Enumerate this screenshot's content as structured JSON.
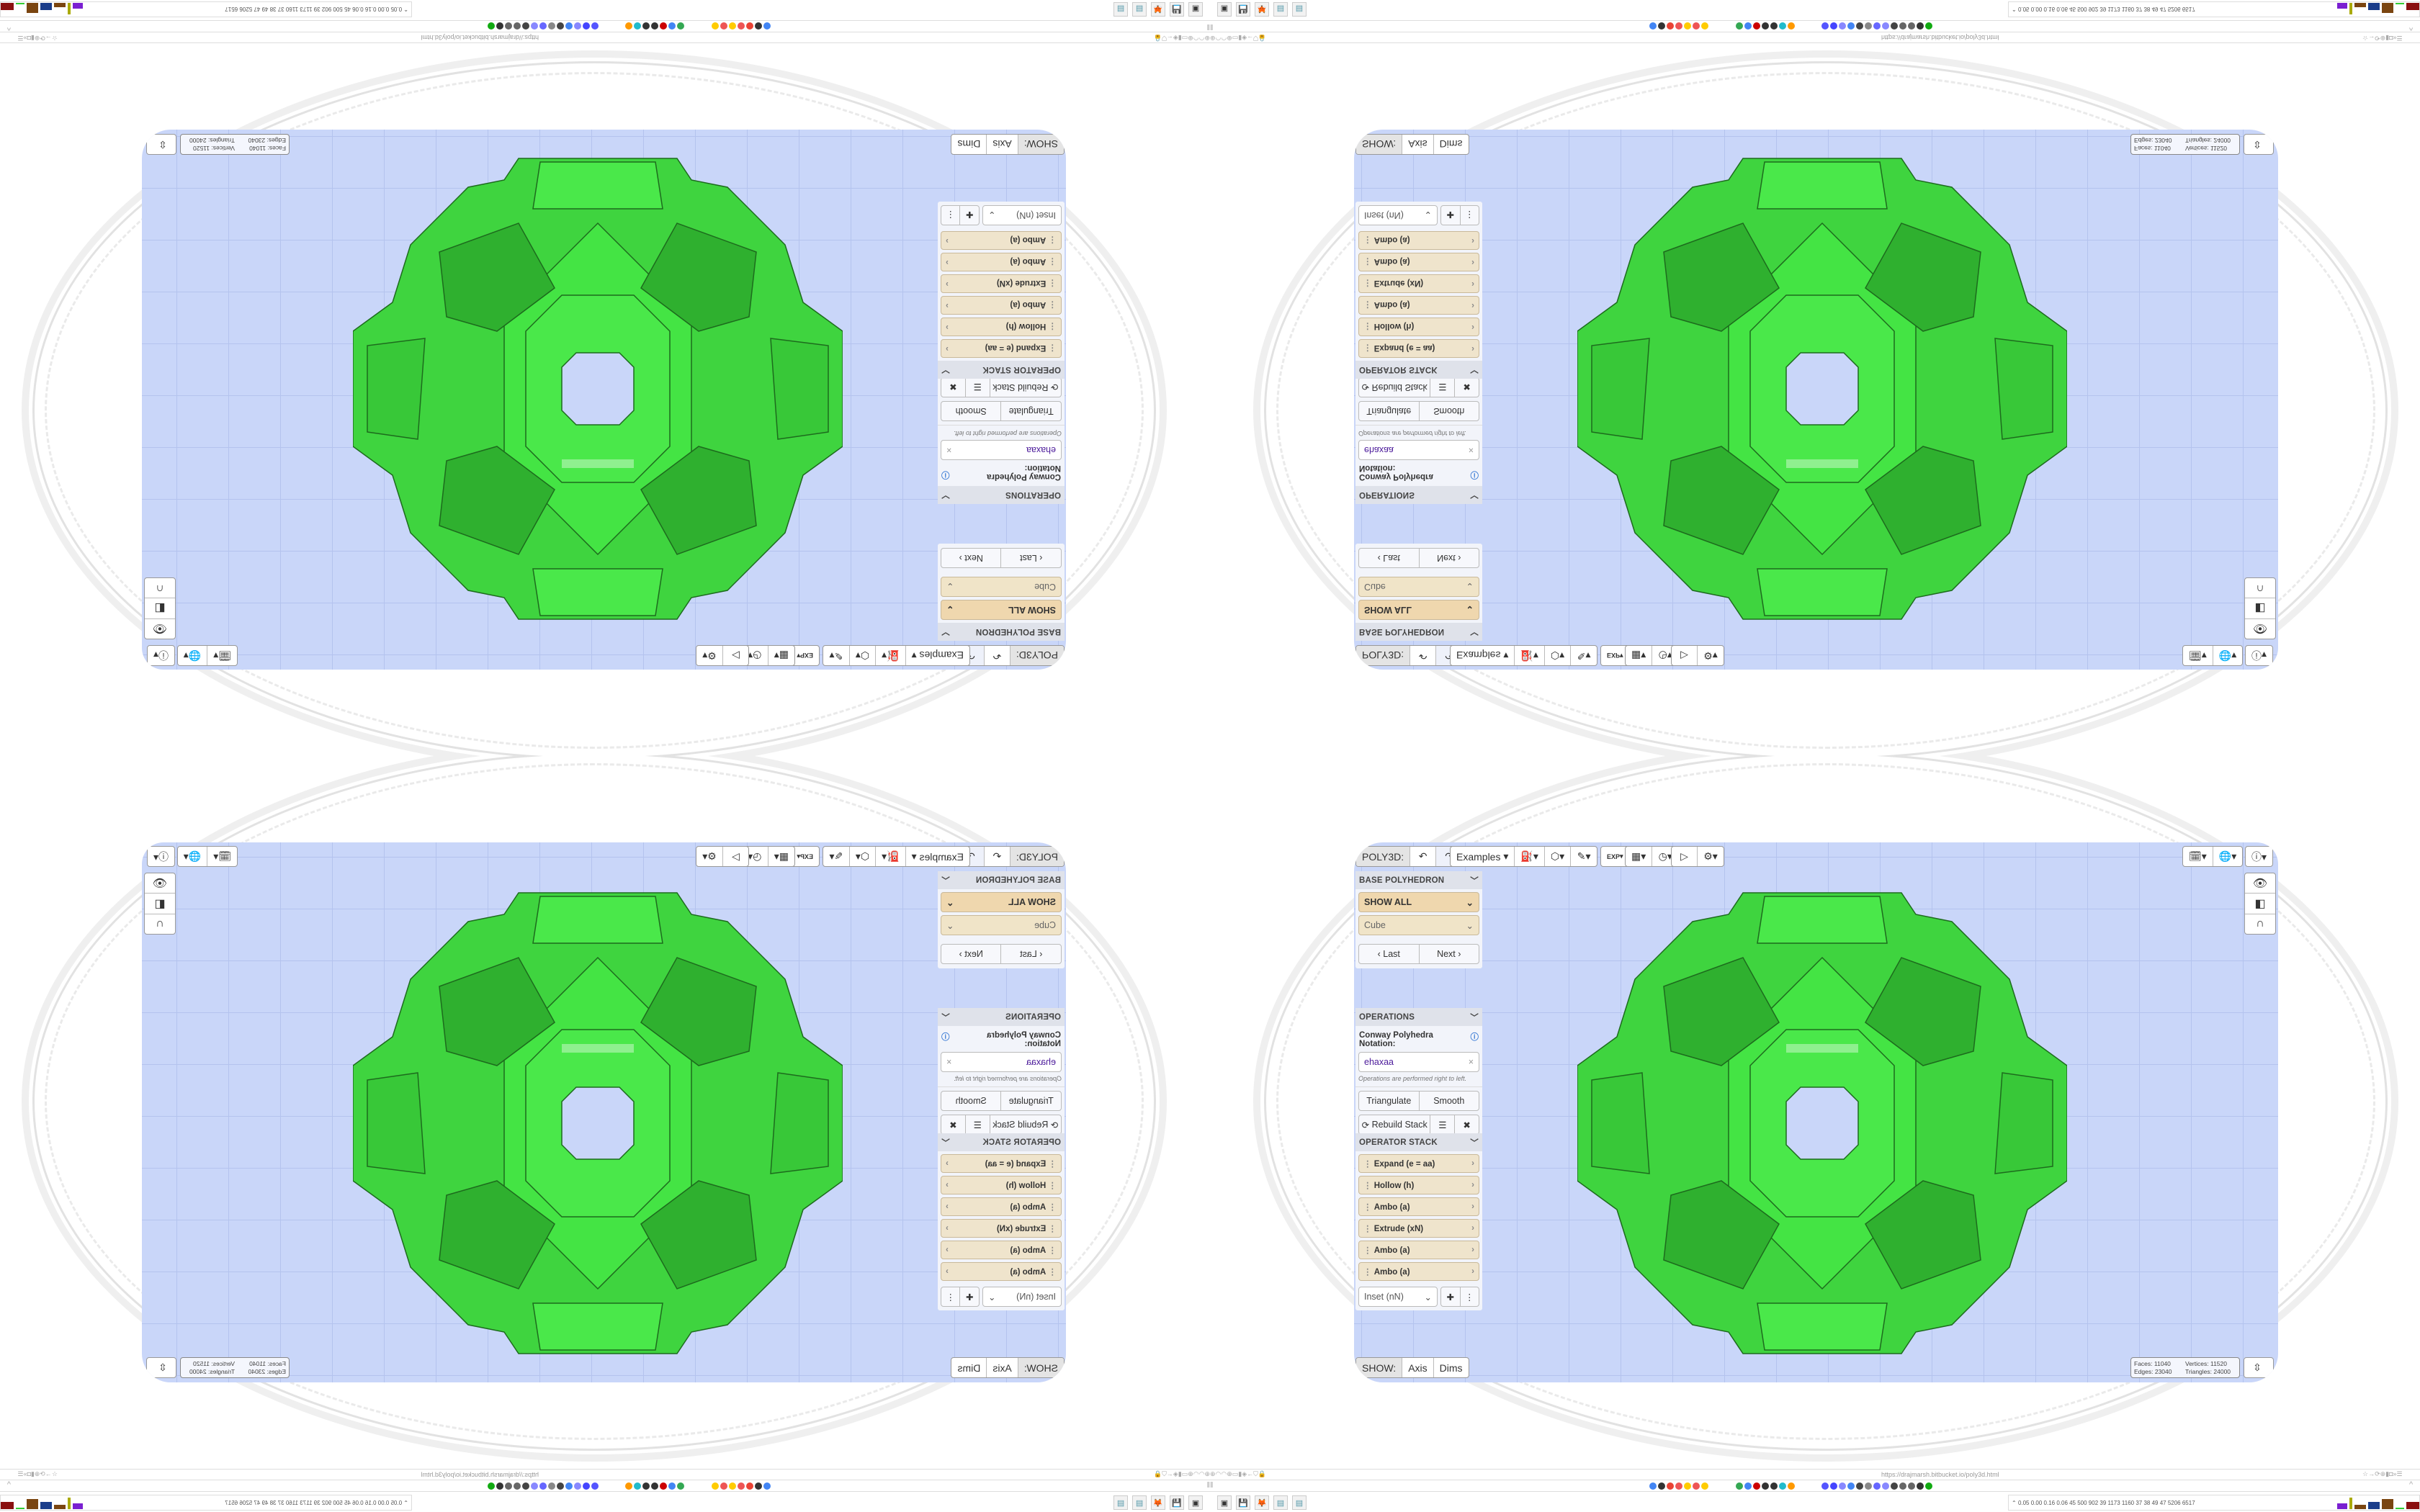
{
  "app": {
    "title": "POLY3D:",
    "accent": "#c9d6f9",
    "model_color": "#43e243"
  },
  "toolbar": {
    "undo_icon": "undo-icon",
    "redo_icon": "redo-icon",
    "examples_label": "Examples",
    "icons": [
      "paint-bucket-icon",
      "cube-icon",
      "pencil-icon",
      "export-icon",
      "calendar-icon",
      "clock-icon",
      "play-icon",
      "gear-icon"
    ],
    "export_text": "EXP"
  },
  "right_tools": {
    "icons": [
      "calendar-clock-icon",
      "globe-icon",
      "info-icon"
    ],
    "side": [
      "eye-icon",
      "toggle-icon",
      "magnet-icon"
    ]
  },
  "sidebar": {
    "base": {
      "title": "BASE POLYHEDRON",
      "filter": "SHOW ALL",
      "shape": "Cube",
      "last": "Last",
      "next": "Next"
    },
    "operations": {
      "title": "OPERATIONS",
      "notation_label": "Conway Polyhedra Notation:",
      "notation_value": "ehaxaa",
      "hint": "Operations are performed right to left.",
      "triangulate": "Triangulate",
      "smooth": "Smooth",
      "rebuild": "Rebuild Stack"
    },
    "stack": {
      "title": "OPERATOR STACK",
      "items": [
        "Expand (e = aa)",
        "Hollow (h)",
        "Ambo (a)",
        "Extrude (xN)",
        "Ambo (a)",
        "Ambo (a)"
      ],
      "add_select": "Inset (nN)"
    }
  },
  "show": {
    "label": "SHOW:",
    "axis": "Axis",
    "dims": "Dims"
  },
  "stats": {
    "faces_label": "Faces:",
    "faces": "11040",
    "vertices_label": "Vertices:",
    "vertices": "11520",
    "edges_label": "Edges:",
    "edges": "23040",
    "triangles_label": "Triangles:",
    "triangles": "24000"
  },
  "browser": {
    "url": "https://drajmarsh.bitbucket.io/poly3d.html"
  },
  "taskbar": {
    "perf": "0.05 0.00 0.16 0.06 45 500 902 39 1173 1160 37 38 49 47 5206 6517",
    "apps": [
      "notepad",
      "notepad",
      "firefox",
      "floppy-43",
      "terminal",
      "terminal",
      "floppy-64",
      "firefox",
      "notepad",
      "notepad"
    ]
  }
}
